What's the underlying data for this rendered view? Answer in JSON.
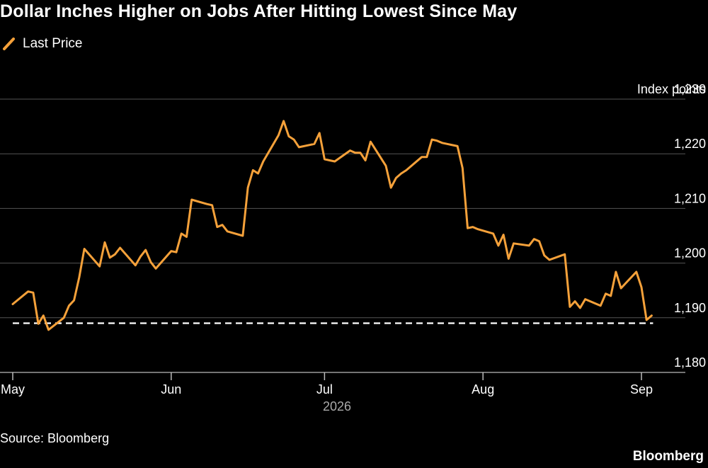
{
  "header": {
    "title": "Dollar Inches Higher on Jobs After Hitting Lowest Since May"
  },
  "legend": {
    "series_label": "Last Price"
  },
  "axis": {
    "unit_label": "Index points",
    "year_label": "2026"
  },
  "footer": {
    "source": "Source: Bloomberg",
    "brand": "Bloomberg"
  },
  "colors": {
    "background": "#000000",
    "series": "#f5a13a",
    "grid": "#555555",
    "reference_line": "#ffffff",
    "text": "#ffffff"
  },
  "chart_data": {
    "type": "line",
    "ylabel": "Index points",
    "xlabel": "2026",
    "ylim": [
      1180,
      1230
    ],
    "yticks": [
      1180,
      1190,
      1200,
      1210,
      1220,
      1230
    ],
    "ytick_labels": [
      "1,180",
      "1,190",
      "1,200",
      "1,210",
      "1,220",
      "1,230"
    ],
    "xticks": [
      {
        "label": "May",
        "date": "2026-05-01"
      },
      {
        "label": "Jun",
        "date": "2026-06-01"
      },
      {
        "label": "Jul",
        "date": "2026-07-01"
      },
      {
        "label": "Aug",
        "date": "2026-08-01"
      },
      {
        "label": "Sep",
        "date": "2026-09-01"
      }
    ],
    "grid": true,
    "legend_position": "top-left",
    "reference_line": {
      "value": 1189,
      "style": "dashed"
    },
    "series": [
      {
        "name": "Last Price",
        "points": [
          [
            "2026-05-01",
            1192.5
          ],
          [
            "2026-05-04",
            1194.8
          ],
          [
            "2026-05-05",
            1194.6
          ],
          [
            "2026-05-06",
            1188.9
          ],
          [
            "2026-05-07",
            1190.4
          ],
          [
            "2026-05-08",
            1187.8
          ],
          [
            "2026-05-11",
            1190.0
          ],
          [
            "2026-05-12",
            1192.2
          ],
          [
            "2026-05-13",
            1193.2
          ],
          [
            "2026-05-14",
            1197.4
          ],
          [
            "2026-05-15",
            1202.6
          ],
          [
            "2026-05-18",
            1199.4
          ],
          [
            "2026-05-19",
            1203.8
          ],
          [
            "2026-05-20",
            1201.0
          ],
          [
            "2026-05-21",
            1201.6
          ],
          [
            "2026-05-22",
            1202.8
          ],
          [
            "2026-05-25",
            1199.6
          ],
          [
            "2026-05-26",
            1201.2
          ],
          [
            "2026-05-27",
            1202.4
          ],
          [
            "2026-05-28",
            1200.2
          ],
          [
            "2026-05-29",
            1199.0
          ],
          [
            "2026-06-01",
            1202.2
          ],
          [
            "2026-06-02",
            1202.0
          ],
          [
            "2026-06-03",
            1205.4
          ],
          [
            "2026-06-04",
            1204.8
          ],
          [
            "2026-06-05",
            1211.6
          ],
          [
            "2026-06-08",
            1210.8
          ],
          [
            "2026-06-09",
            1210.6
          ],
          [
            "2026-06-10",
            1206.6
          ],
          [
            "2026-06-11",
            1207.0
          ],
          [
            "2026-06-12",
            1205.8
          ],
          [
            "2026-06-15",
            1205.0
          ],
          [
            "2026-06-16",
            1213.8
          ],
          [
            "2026-06-17",
            1217.0
          ],
          [
            "2026-06-18",
            1216.4
          ],
          [
            "2026-06-19",
            1218.6
          ],
          [
            "2026-06-22",
            1223.4
          ],
          [
            "2026-06-23",
            1226.0
          ],
          [
            "2026-06-24",
            1223.2
          ],
          [
            "2026-06-25",
            1222.6
          ],
          [
            "2026-06-26",
            1221.2
          ],
          [
            "2026-06-29",
            1221.8
          ],
          [
            "2026-06-30",
            1223.8
          ],
          [
            "2026-07-01",
            1219.0
          ],
          [
            "2026-07-02",
            1218.8
          ],
          [
            "2026-07-03",
            1218.6
          ],
          [
            "2026-07-06",
            1220.6
          ],
          [
            "2026-07-07",
            1220.2
          ],
          [
            "2026-07-08",
            1220.2
          ],
          [
            "2026-07-09",
            1218.8
          ],
          [
            "2026-07-10",
            1222.2
          ],
          [
            "2026-07-13",
            1217.8
          ],
          [
            "2026-07-14",
            1213.8
          ],
          [
            "2026-07-15",
            1215.6
          ],
          [
            "2026-07-16",
            1216.4
          ],
          [
            "2026-07-17",
            1217.0
          ],
          [
            "2026-07-20",
            1219.4
          ],
          [
            "2026-07-21",
            1219.4
          ],
          [
            "2026-07-22",
            1222.6
          ],
          [
            "2026-07-23",
            1222.4
          ],
          [
            "2026-07-24",
            1222.0
          ],
          [
            "2026-07-27",
            1221.4
          ],
          [
            "2026-07-28",
            1217.4
          ],
          [
            "2026-07-29",
            1206.4
          ],
          [
            "2026-07-30",
            1206.6
          ],
          [
            "2026-07-31",
            1206.2
          ],
          [
            "2026-08-03",
            1205.4
          ],
          [
            "2026-08-04",
            1203.2
          ],
          [
            "2026-08-05",
            1205.2
          ],
          [
            "2026-08-06",
            1200.8
          ],
          [
            "2026-08-07",
            1203.6
          ],
          [
            "2026-08-10",
            1203.2
          ],
          [
            "2026-08-11",
            1204.4
          ],
          [
            "2026-08-12",
            1204.0
          ],
          [
            "2026-08-13",
            1201.4
          ],
          [
            "2026-08-14",
            1200.6
          ],
          [
            "2026-08-17",
            1201.6
          ],
          [
            "2026-08-18",
            1192.0
          ],
          [
            "2026-08-19",
            1193.0
          ],
          [
            "2026-08-20",
            1191.8
          ],
          [
            "2026-08-21",
            1193.4
          ],
          [
            "2026-08-24",
            1192.2
          ],
          [
            "2026-08-25",
            1194.4
          ],
          [
            "2026-08-26",
            1194.0
          ],
          [
            "2026-08-27",
            1198.4
          ],
          [
            "2026-08-28",
            1195.4
          ],
          [
            "2026-08-31",
            1198.4
          ],
          [
            "2026-09-01",
            1195.6
          ],
          [
            "2026-09-02",
            1189.6
          ],
          [
            "2026-09-03",
            1190.4
          ]
        ]
      }
    ]
  }
}
